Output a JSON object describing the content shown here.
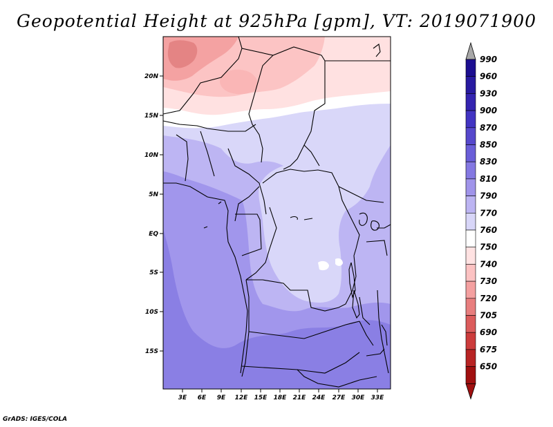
{
  "title": "Geopotential Height at 925hPa [gpm], VT: 2019071900",
  "credit": "GrADS: IGES/COLA",
  "map": {
    "lat_labels": [
      "20N",
      "15N",
      "10N",
      "5N",
      "EQ",
      "5S",
      "10S",
      "15S"
    ],
    "lon_labels": [
      "3E",
      "6E",
      "9E",
      "12E",
      "15E",
      "18E",
      "21E",
      "24E",
      "27E",
      "30E",
      "33E"
    ]
  },
  "colorbar": {
    "levels": [
      "990",
      "960",
      "930",
      "900",
      "870",
      "850",
      "830",
      "810",
      "790",
      "770",
      "760",
      "750",
      "740",
      "730",
      "720",
      "705",
      "690",
      "675",
      "650"
    ],
    "colors": {
      "990": "#1c0e90",
      "960": "#281aa0",
      "930": "#3424b0",
      "900": "#4234c2",
      "870": "#5648cc",
      "850": "#6a5ed8",
      "830": "#8478e2",
      "810": "#a094ea",
      "790": "#bcb4f2",
      "770": "#d8d6f8",
      "760": "#ffffff",
      "750": "#ffe2e2",
      "740": "#fcc2c2",
      "730": "#f4a0a0",
      "720": "#e87e7e",
      "705": "#dc5c5c",
      "690": "#cc3c3c",
      "675": "#b82424",
      "650": "#a01010"
    }
  }
}
